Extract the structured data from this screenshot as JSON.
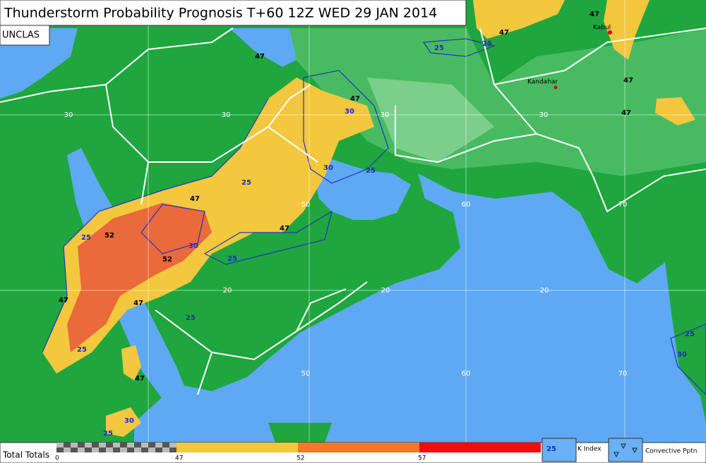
{
  "title": "Thunderstorm Probability Prognosis T+60 12Z WED 29 JAN 2014",
  "classification": "UNCLAS",
  "places": [
    "Kabul",
    "Kandahar"
  ],
  "latitude_labels": [
    "30",
    "30",
    "30",
    "30",
    "20",
    "20",
    "20"
  ],
  "longitude_labels": [
    "50",
    "60",
    "70",
    "50",
    "60",
    "70"
  ],
  "total_totals_labels": [
    "47",
    "47",
    "47",
    "47",
    "47",
    "47",
    "47",
    "47",
    "47",
    "47",
    "47",
    "52",
    "52"
  ],
  "k_index_labels": [
    "25",
    "25",
    "25",
    "25",
    "30",
    "30",
    "30",
    "25",
    "25",
    "25",
    "25",
    "25",
    "30",
    "25",
    "30"
  ],
  "legend": {
    "title": "Total Totals",
    "scale": [
      "0",
      "47",
      "52",
      "57"
    ],
    "k_index_sample": "25",
    "k_index": "K Index",
    "convective": "Convective Pptn"
  }
}
